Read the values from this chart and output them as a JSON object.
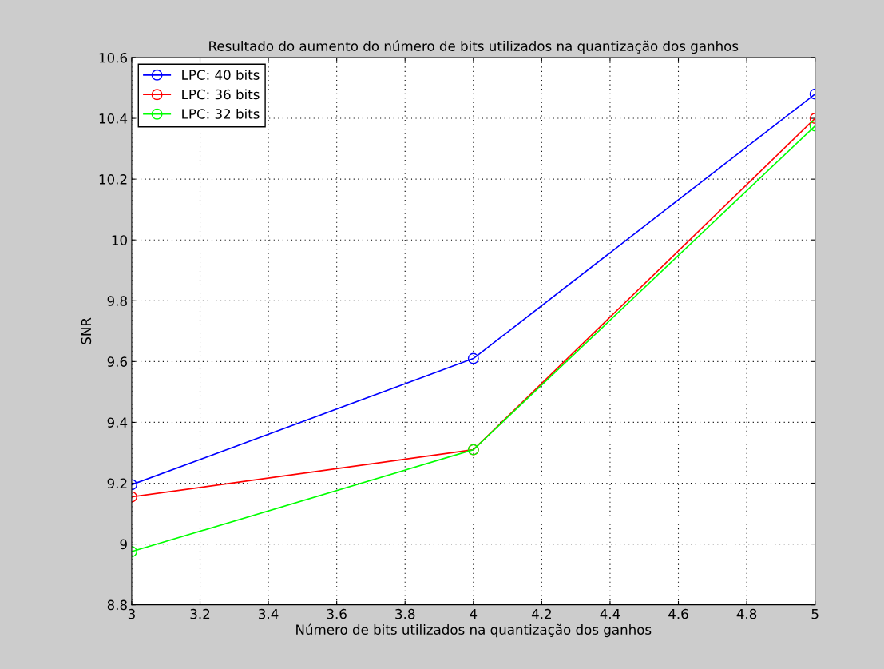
{
  "chart_data": {
    "type": "line",
    "title": "Resultado do aumento do número de bits utilizados na quantização dos ganhos",
    "xlabel": "Número de bits utilizados na quantização dos ganhos",
    "ylabel": "SNR",
    "x": [
      3,
      4,
      5
    ],
    "series": [
      {
        "name": "LPC: 40 bits",
        "color": "#0000ff",
        "values": [
          9.195,
          9.61,
          10.48
        ]
      },
      {
        "name": "LPC: 36 bits",
        "color": "#ff0000",
        "values": [
          9.155,
          9.31,
          10.4
        ]
      },
      {
        "name": "LPC: 32 bits",
        "color": "#00ff00",
        "values": [
          8.975,
          9.31,
          10.375
        ]
      }
    ],
    "xlim": [
      3,
      5
    ],
    "xticks": [
      3,
      3.2,
      3.4,
      3.6,
      3.8,
      4,
      4.2,
      4.4,
      4.6,
      4.8,
      5
    ],
    "ylim": [
      8.8,
      10.6
    ],
    "yticks": [
      8.8,
      9,
      9.2,
      9.4,
      9.6,
      9.8,
      10,
      10.2,
      10.4,
      10.6
    ],
    "grid": true,
    "legend": "top left",
    "marker": "circle",
    "line_style": "solid"
  }
}
